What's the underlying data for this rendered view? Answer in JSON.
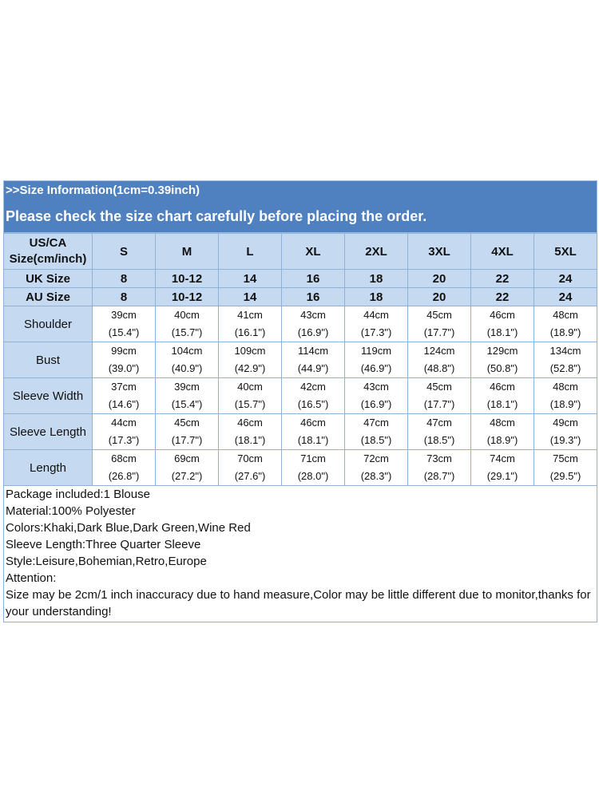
{
  "header": {
    "line1": ">>Size Information(1cm=0.39inch)",
    "line2": "Please check the size chart carefully before placing the order."
  },
  "table": {
    "us_label": "US/CA Size(cm/inch)",
    "us_label_line1": "US/CA",
    "us_label_line2": "Size(cm/inch)",
    "sizes": [
      "S",
      "M",
      "L",
      "XL",
      "2XL",
      "3XL",
      "4XL",
      "5XL"
    ],
    "uk": {
      "label": "UK Size",
      "values": [
        "8",
        "10-12",
        "14",
        "16",
        "18",
        "20",
        "22",
        "24"
      ]
    },
    "au": {
      "label": "AU Size",
      "values": [
        "8",
        "10-12",
        "14",
        "16",
        "18",
        "20",
        "22",
        "24"
      ]
    },
    "measurements": [
      {
        "label": "Shoulder",
        "cm": [
          "39cm",
          "40cm",
          "41cm",
          "43cm",
          "44cm",
          "45cm",
          "46cm",
          "48cm"
        ],
        "inch": [
          "(15.4\")",
          "(15.7\")",
          "(16.1\")",
          "(16.9\")",
          "(17.3\")",
          "(17.7\")",
          "(18.1\")",
          "(18.9\")"
        ]
      },
      {
        "label": "Bust",
        "cm": [
          "99cm",
          "104cm",
          "109cm",
          "114cm",
          "119cm",
          "124cm",
          "129cm",
          "134cm"
        ],
        "inch": [
          "(39.0\")",
          "(40.9\")",
          "(42.9\")",
          "(44.9\")",
          "(46.9\")",
          "(48.8\")",
          "(50.8\")",
          "(52.8\")"
        ]
      },
      {
        "label": "Sleeve Width",
        "cm": [
          "37cm",
          "39cm",
          "40cm",
          "42cm",
          "43cm",
          "45cm",
          "46cm",
          "48cm"
        ],
        "inch": [
          "(14.6\")",
          "(15.4\")",
          "(15.7\")",
          "(16.5\")",
          "(16.9\")",
          "(17.7\")",
          "(18.1\")",
          "(18.9\")"
        ]
      },
      {
        "label": "Sleeve Length",
        "cm": [
          "44cm",
          "45cm",
          "46cm",
          "46cm",
          "47cm",
          "47cm",
          "48cm",
          "49cm"
        ],
        "inch": [
          "(17.3\")",
          "(17.7\")",
          "(18.1\")",
          "(18.1\")",
          "(18.5\")",
          "(18.5\")",
          "(18.9\")",
          "(19.3\")"
        ]
      },
      {
        "label": "Length",
        "cm": [
          "68cm",
          "69cm",
          "70cm",
          "71cm",
          "72cm",
          "73cm",
          "74cm",
          "75cm"
        ],
        "inch": [
          "(26.8\")",
          "(27.2\")",
          "(27.6\")",
          "(28.0\")",
          "(28.3\")",
          "(28.7\")",
          "(29.1\")",
          "(29.5\")"
        ]
      }
    ]
  },
  "info": {
    "package": "Package included:1 Blouse",
    "material": "Material:100% Polyester",
    "colors": "Colors:Khaki,Dark Blue,Dark Green,Wine Red",
    "sleeve": "Sleeve Length:Three Quarter Sleeve",
    "style": "Style:Leisure,Bohemian,Retro,Europe",
    "attention": "Attention:",
    "note": "Size may be 2cm/1 inch inaccuracy due to hand measure,Color may be little different due to monitor,thanks for your understanding!"
  },
  "colors": {
    "header_bg": "#4f81c0",
    "label_bg": "#c5d9f1",
    "border": "#8fb2d9"
  }
}
